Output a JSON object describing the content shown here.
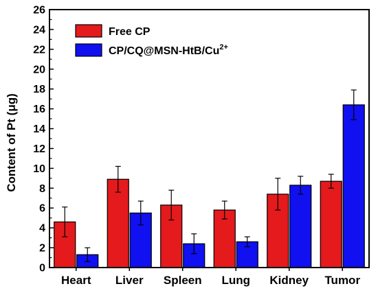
{
  "chart_data": {
    "type": "bar",
    "categories": [
      "Heart",
      "Liver",
      "Spleen",
      "Lung",
      "Kidney",
      "Tumor"
    ],
    "series": [
      {
        "name": "Free CP",
        "color": "#e41a1c",
        "values": [
          4.6,
          8.9,
          6.3,
          5.8,
          7.4,
          8.7
        ],
        "errors": [
          1.5,
          1.3,
          1.5,
          0.9,
          1.6,
          0.7
        ]
      },
      {
        "name": "CP/CQ@MSN-HtB/Cu",
        "name_sup": "2+",
        "color": "#1010f0",
        "values": [
          1.3,
          5.5,
          2.4,
          2.6,
          8.3,
          16.4
        ],
        "errors": [
          0.7,
          1.2,
          1.0,
          0.5,
          0.9,
          1.5
        ]
      }
    ],
    "ylabel": "Content of Pt (μg)",
    "ylim": [
      0,
      26
    ],
    "yticks": [
      0,
      2,
      4,
      6,
      8,
      10,
      12,
      14,
      16,
      18,
      20,
      22,
      24,
      26
    ],
    "legend_position": "top-left",
    "grid": false
  }
}
